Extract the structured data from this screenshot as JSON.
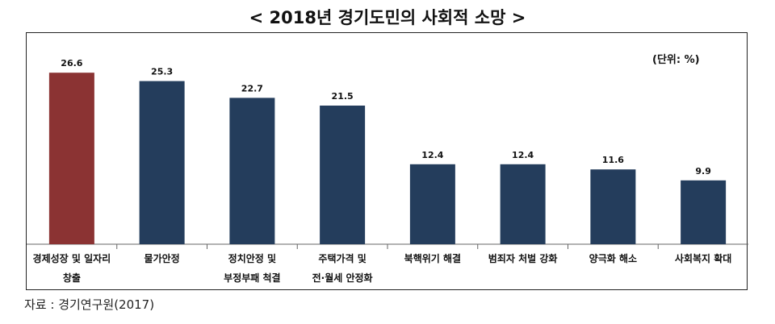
{
  "title": "< 2018년 경기도민의 사회적 소망 >",
  "unit_label": "(단위: %)",
  "source": "자료 : 경기연구원(2017)",
  "colors": {
    "highlight": "#8b3333",
    "default": "#243d5c"
  },
  "chart_data": {
    "type": "bar",
    "title": "< 2018년 경기도민의 사회적 소망 >",
    "categories": [
      [
        "경제성장 및 일자리",
        "창출"
      ],
      [
        "물가안정"
      ],
      [
        "정치안정 및",
        "부정부패 척결"
      ],
      [
        "주택가격 및",
        "전·월세 안정화"
      ],
      [
        "북핵위기 해결"
      ],
      [
        "범죄자 처벌 강화"
      ],
      [
        "양극화 해소"
      ],
      [
        "사회복지 확대"
      ]
    ],
    "values": [
      26.6,
      25.3,
      22.7,
      21.5,
      12.4,
      12.4,
      11.6,
      9.9
    ],
    "value_labels": [
      "26.6",
      "25.3",
      "22.7",
      "21.5",
      "12.4",
      "12.4",
      "11.6",
      "9.9"
    ],
    "ylim": [
      0,
      30
    ],
    "grid": false,
    "highlight_index": 0
  }
}
